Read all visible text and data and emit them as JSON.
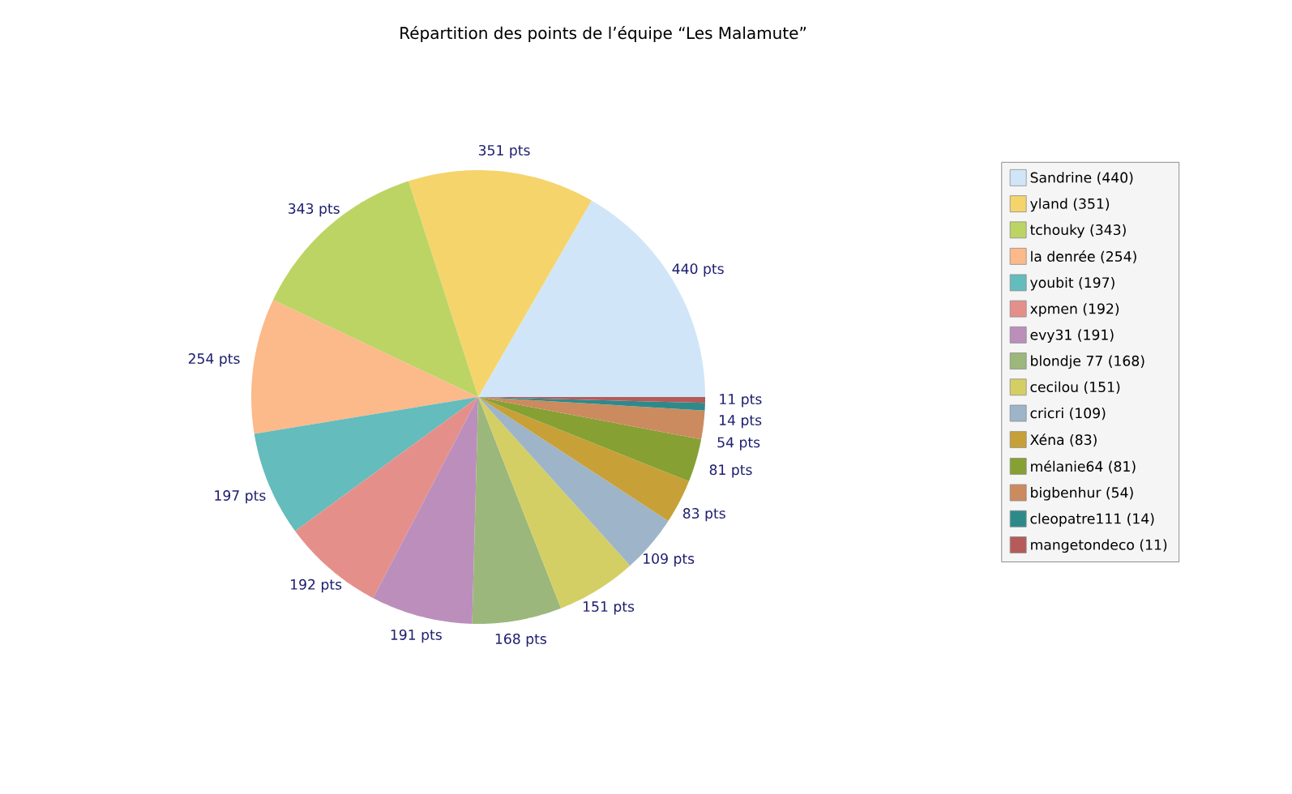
{
  "chart_data": {
    "type": "pie",
    "title": "Répartition des points de l’équipe “Les Malamute”",
    "categories": [
      "Sandrine (440)",
      "yland (351)",
      "tchouky (343)",
      "la denrée (254)",
      "youbit (197)",
      "xpmen (192)",
      "evy31 (191)",
      "blondje 77 (168)",
      "cecilou (151)",
      "cricri (109)",
      "Xéna (83)",
      "mélanie64 (81)",
      "bigbenhur (54)",
      "cleopatre111 (14)",
      "mangetondeco (11)"
    ],
    "values": [
      440,
      351,
      343,
      254,
      197,
      192,
      191,
      168,
      151,
      109,
      83,
      81,
      54,
      14,
      11
    ],
    "colors": [
      "#d0e6f8",
      "#f6d46c",
      "#bcd464",
      "#fcb98a",
      "#64bcbc",
      "#e58f8b",
      "#bb8ebc",
      "#9cb77b",
      "#d4cf64",
      "#9db4c9",
      "#c7a137",
      "#87a033",
      "#cc8a5f",
      "#2e8a8a",
      "#b65a5a"
    ],
    "value_labels": [
      "440 pts",
      "351 pts",
      "343 pts",
      "254 pts",
      "197 pts",
      "192 pts",
      "191 pts",
      "168 pts",
      "151 pts",
      "109 pts",
      "83 pts",
      "81 pts",
      "54 pts",
      "14 pts",
      "11 pts"
    ],
    "legend": "right"
  }
}
